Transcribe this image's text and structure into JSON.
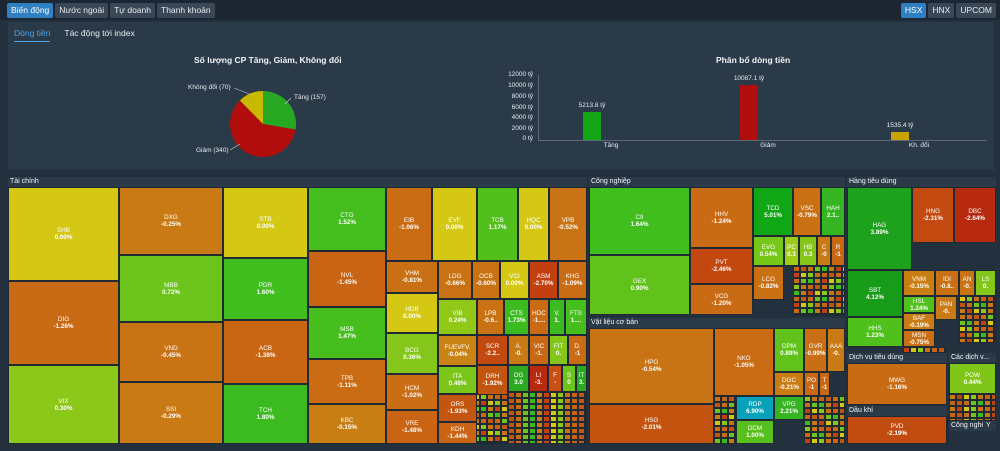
{
  "top_tabs": [
    {
      "label": "Biến động",
      "active": true
    },
    {
      "label": "Nước ngoài",
      "active": false
    },
    {
      "label": "Tự doanh",
      "active": false
    },
    {
      "label": "Thanh khoản",
      "active": false
    }
  ],
  "exchanges": [
    {
      "label": "HSX",
      "active": true
    },
    {
      "label": "HNX",
      "active": false
    },
    {
      "label": "UPCOM",
      "active": false
    }
  ],
  "sub_tabs": [
    {
      "label": "Dòng tiền",
      "active": true
    },
    {
      "label": "Tác động tới index",
      "active": false
    }
  ],
  "pie": {
    "title": "Số lượng CP Tăng, Giảm, Không đổi",
    "labels": {
      "up": "Tăng (157)",
      "down": "Giảm (340)",
      "flat": "Không đổi (70)"
    }
  },
  "bars": {
    "title": "Phân bổ dòng tiền",
    "yticks": [
      "12000 tỷ",
      "10000 tỷ",
      "8000 tỷ",
      "6000 tỷ",
      "4000 tỷ",
      "2000 tỷ",
      "0 tỷ"
    ],
    "value_labels": [
      "5213.8 tỷ",
      "10087.1 tỷ",
      "1535.4 tỷ"
    ],
    "categories": [
      "Tăng",
      "Giảm",
      "Kh. đổi"
    ]
  },
  "chart_data": [
    {
      "type": "pie",
      "title": "Số lượng CP Tăng, Giảm, Không đổi",
      "categories": [
        "Tăng",
        "Giảm",
        "Không đổi"
      ],
      "values": [
        157,
        340,
        70
      ],
      "colors": [
        "#27a823",
        "#b20d0d",
        "#c9b800"
      ]
    },
    {
      "type": "bar",
      "title": "Phân bổ dòng tiền",
      "categories": [
        "Tăng",
        "Giảm",
        "Kh. đổi"
      ],
      "values": [
        5213.8,
        10087.1,
        1535.4
      ],
      "ylim": [
        0,
        12000
      ],
      "colors": [
        "#14a515",
        "#b00e0e",
        "#c9a400"
      ]
    }
  ],
  "sectors": {
    "taichinh": "Tài chính",
    "congnghiep": "Công nghiệp",
    "hangtieudung": "Hàng tiêu dùng",
    "vatlieu": "Vật liệu cơ bản",
    "dichvutieudung": "Dịch vụ tiêu dùng",
    "cacdichvu": "Các dịch v...",
    "daukhi": "Dầu khí",
    "congnghe": "Công nghệ",
    "y": "Y"
  },
  "tiles": [
    {
      "sym": "SHB",
      "pct": "0.00%",
      "c": "#d4c814"
    },
    {
      "sym": "DIG",
      "pct": "-1.26%",
      "c": "#c96a14"
    },
    {
      "sym": "VIX",
      "pct": "0.30%",
      "c": "#8bc81a"
    },
    {
      "sym": "DXG",
      "pct": "-0.25%",
      "c": "#c97a14"
    },
    {
      "sym": "MBB",
      "pct": "0.72%",
      "c": "#6dc41c"
    },
    {
      "sym": "VND",
      "pct": "-0.45%",
      "c": "#c97414"
    },
    {
      "sym": "SSI",
      "pct": "-0.29%",
      "c": "#c97a14"
    },
    {
      "sym": "STB",
      "pct": "0.00%",
      "c": "#d4c814"
    },
    {
      "sym": "PDR",
      "pct": "1.60%",
      "c": "#3fbe1e"
    },
    {
      "sym": "ACB",
      "pct": "-1.38%",
      "c": "#c96614"
    },
    {
      "sym": "TCH",
      "pct": "1.80%",
      "c": "#3cbb20"
    },
    {
      "sym": "CTG",
      "pct": "1.52%",
      "c": "#43be1e"
    },
    {
      "sym": "NVL",
      "pct": "-1.45%",
      "c": "#c96414"
    },
    {
      "sym": "MSB",
      "pct": "1.47%",
      "c": "#45be1e"
    },
    {
      "sym": "TPB",
      "pct": "-1.11%",
      "c": "#c96c14"
    },
    {
      "sym": "KBC",
      "pct": "-0.15%",
      "c": "#c97e14"
    },
    {
      "sym": "EIB",
      "pct": "-1.06%",
      "c": "#c96c14"
    },
    {
      "sym": "EVF",
      "pct": "0.00%",
      "c": "#d4c814"
    },
    {
      "sym": "TCB",
      "pct": "1.17%",
      "c": "#52c01c"
    },
    {
      "sym": "HQC",
      "pct": "0.00%",
      "c": "#d4c814"
    },
    {
      "sym": "VPB",
      "pct": "-0.52%",
      "c": "#c97414"
    },
    {
      "sym": "VHM",
      "pct": "-0.81%",
      "c": "#c97014"
    },
    {
      "sym": "LDG",
      "pct": "-0.66%",
      "c": "#c97214"
    },
    {
      "sym": "OCB",
      "pct": "-0.60%",
      "c": "#c97214"
    },
    {
      "sym": "VCI",
      "pct": "0.00%",
      "c": "#d4c814"
    },
    {
      "sym": "ASM",
      "pct": "-2.70%",
      "c": "#c24010"
    },
    {
      "sym": "KHG",
      "pct": "-1.09%",
      "c": "#c96c14"
    },
    {
      "sym": "HDB",
      "pct": "0.00%",
      "c": "#d4c814"
    },
    {
      "sym": "BCG",
      "pct": "0.36%",
      "c": "#84c61a"
    },
    {
      "sym": "HCM",
      "pct": "-1.02%",
      "c": "#c96e14"
    },
    {
      "sym": "VRE",
      "pct": "-1.48%",
      "c": "#c96414"
    },
    {
      "sym": "VIB",
      "pct": "0.24%",
      "c": "#90c818"
    },
    {
      "sym": "LPB",
      "pct": "-0.6..",
      "c": "#c97214"
    },
    {
      "sym": "CTS",
      "pct": "1.73%",
      "c": "#3cbb20"
    },
    {
      "sym": "HDC",
      "pct": "-1....",
      "c": "#c96a14"
    },
    {
      "sym": "V.",
      "pct": "1.",
      "c": "#3cbb20"
    },
    {
      "sym": "FTS",
      "pct": "1....",
      "c": "#45be1e"
    },
    {
      "sym": "FUEVFV.",
      "pct": "-0.04%",
      "c": "#c98214"
    },
    {
      "sym": "SCR",
      "pct": "-2.2..",
      "c": "#c24a10"
    },
    {
      "sym": "A.",
      "pct": "-0.",
      "c": "#c97a14"
    },
    {
      "sym": "DRH",
      "pct": "-1.92%",
      "c": "#c25610"
    },
    {
      "sym": "VIC",
      "pct": "-1.",
      "c": "#c96814"
    },
    {
      "sym": "FIT",
      "pct": "0.",
      "c": "#84c61a"
    },
    {
      "sym": "D.",
      "pct": "-1",
      "c": "#c96c14"
    },
    {
      "sym": "ITA",
      "pct": "0.48%",
      "c": "#7ac61a"
    },
    {
      "sym": "ORS",
      "pct": "-1.93%",
      "c": "#c25610"
    },
    {
      "sym": "KDH",
      "pct": "-1.44%",
      "c": "#c96414"
    },
    {
      "sym": "OG",
      "pct": "3.0",
      "c": "#2da822"
    },
    {
      "sym": "LI",
      "pct": "-3.",
      "c": "#b82a0e"
    },
    {
      "sym": "F",
      "pct": "-",
      "c": "#c95014"
    },
    {
      "sym": "S",
      "pct": "0",
      "c": "#6dc41c"
    },
    {
      "sym": "IT",
      "pct": "3.",
      "c": "#2da822"
    },
    {
      "sym": "CII",
      "pct": "1.64%",
      "c": "#3fbe1e"
    },
    {
      "sym": "GEX",
      "pct": "0.90%",
      "c": "#62c21c"
    },
    {
      "sym": "HHV",
      "pct": "-1.24%",
      "c": "#c96a14"
    },
    {
      "sym": "PVT",
      "pct": "-2.46%",
      "c": "#c24810"
    },
    {
      "sym": "VCG",
      "pct": "-1.20%",
      "c": "#c96a14"
    },
    {
      "sym": "TCD",
      "pct": "5.01%",
      "c": "#11a616"
    },
    {
      "sym": "VSC",
      "pct": "-0.79%",
      "c": "#c97014"
    },
    {
      "sym": "HAH",
      "pct": "2.1..",
      "c": "#35b522"
    },
    {
      "sym": "EVG",
      "pct": "0.54%",
      "c": "#77c61a"
    },
    {
      "sym": "PC",
      "pct": "0.1",
      "c": "#9ccb18"
    },
    {
      "sym": "HB",
      "pct": "0.3",
      "c": "#86c61a"
    },
    {
      "sym": "C",
      "pct": "-0",
      "c": "#c97a14"
    },
    {
      "sym": "R",
      "pct": "-1",
      "c": "#c96814"
    },
    {
      "sym": "LCG",
      "pct": "-0.82%",
      "c": "#c97014"
    },
    {
      "sym": "HPG",
      "pct": "-0.54%",
      "c": "#c97414"
    },
    {
      "sym": "HSG",
      "pct": "-2.01%",
      "c": "#c25410"
    },
    {
      "sym": "NKG",
      "pct": "-1.05%",
      "c": "#c96c14"
    },
    {
      "sym": "RDP",
      "pct": "6.90%",
      "c": "#07a1ba"
    },
    {
      "sym": "DCM",
      "pct": "1.00%",
      "c": "#58c01c"
    },
    {
      "sym": "DPM",
      "pct": "0.89%",
      "c": "#62c21c"
    },
    {
      "sym": "GVR",
      "pct": "-0.99%",
      "c": "#c96e14"
    },
    {
      "sym": "DGC",
      "pct": "-0.21%",
      "c": "#c97c14"
    },
    {
      "sym": "PO",
      "pct": "-1",
      "c": "#c96814"
    },
    {
      "sym": "T",
      "pct": "-1",
      "c": "#c96814"
    },
    {
      "sym": "VPG",
      "pct": "2.21%",
      "c": "#35b522"
    },
    {
      "sym": "AAA",
      "pct": "-0.",
      "c": "#c97a14"
    },
    {
      "sym": "HAG",
      "pct": "3.89%",
      "c": "#1ea11c"
    },
    {
      "sym": "HNG",
      "pct": "-2.31%",
      "c": "#c24a10"
    },
    {
      "sym": "DBC",
      "pct": "-2.64%",
      "c": "#b82a10"
    },
    {
      "sym": "SBT",
      "pct": "4.12%",
      "c": "#179c1a"
    },
    {
      "sym": "VNM",
      "pct": "-0.15%",
      "c": "#c97e14"
    },
    {
      "sym": "IDI",
      "pct": "-0.8..",
      "c": "#c97014"
    },
    {
      "sym": "AN",
      "pct": "-0.",
      "c": "#c97414"
    },
    {
      "sym": "LS",
      "pct": "0.",
      "c": "#84c61a"
    },
    {
      "sym": "HSL",
      "pct": "1.24%",
      "c": "#50c01c"
    },
    {
      "sym": "PAN",
      "pct": "-0.",
      "c": "#c97a14"
    },
    {
      "sym": "HHS",
      "pct": "1.23%",
      "c": "#50c01c"
    },
    {
      "sym": "BAF",
      "pct": "-0.19%",
      "c": "#c97c14"
    },
    {
      "sym": "MSN",
      "pct": "-0.75%",
      "c": "#c97014"
    },
    {
      "sym": "MWG",
      "pct": "-1.16%",
      "c": "#c96a14"
    },
    {
      "sym": "POW",
      "pct": "0.44%",
      "c": "#80c61a"
    },
    {
      "sym": "PVD",
      "pct": "-2.19%",
      "c": "#c24c10"
    }
  ]
}
